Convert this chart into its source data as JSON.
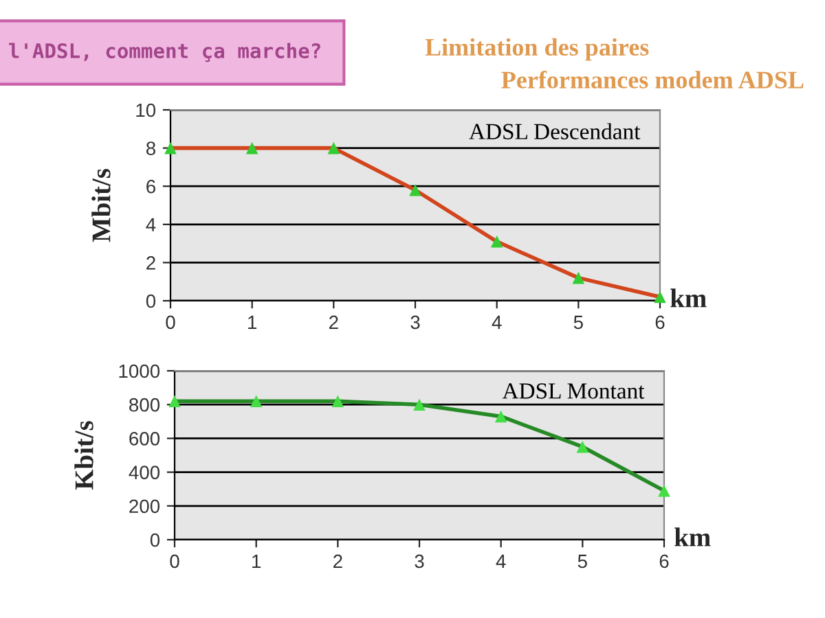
{
  "chart_data": [
    {
      "type": "line",
      "title": "l'ADSL, comment ça marche?",
      "subtitle": "Limitation des paires\nPerformances modem ADSL",
      "xlabel": "km",
      "ylabel": "Mbit/s",
      "annotations": [
        "ADSL Descendant"
      ],
      "x": [
        0,
        1,
        2,
        3,
        4,
        5,
        6
      ],
      "series": [
        {
          "color": "#d2461e",
          "colors": [
            "#33cc33",
            "#33cc33",
            "#33cc33",
            "#33cc33",
            "#33cc33",
            "#33cc33",
            "#33cc33"
          ],
          "values": [
            8,
            8,
            8,
            5.8,
            3.1,
            1.2,
            0.2
          ]
        }
      ],
      "xlim": [
        0,
        6
      ],
      "xticks": [
        0,
        1,
        2,
        3,
        4,
        5,
        6
      ],
      "ylim": [
        0,
        10
      ],
      "yticks": [
        0,
        2,
        4,
        6,
        8,
        10
      ],
      "grid": "y",
      "marker": "triangle",
      "line_style": "solid"
    },
    {
      "type": "line",
      "xlabel": "km",
      "ylabel": "Kbit/s",
      "annotations": [
        "ADSL Montant"
      ],
      "x": [
        0,
        1,
        2,
        3,
        4,
        5,
        6
      ],
      "series": [
        {
          "color": "#268a26",
          "colors": [
            "#44dd44",
            "#44dd44",
            "#44dd44",
            "#44dd44",
            "#44dd44",
            "#44dd44",
            "#44dd44"
          ],
          "values": [
            820,
            820,
            820,
            800,
            730,
            550,
            290
          ]
        }
      ],
      "xlim": [
        0,
        6
      ],
      "xticks": [
        0,
        1,
        2,
        3,
        4,
        5,
        6
      ],
      "ylim": [
        0,
        1000
      ],
      "yticks": [
        0,
        200,
        400,
        600,
        800,
        1000
      ],
      "grid": "y",
      "marker": "triangle",
      "line_style": "solid"
    }
  ]
}
